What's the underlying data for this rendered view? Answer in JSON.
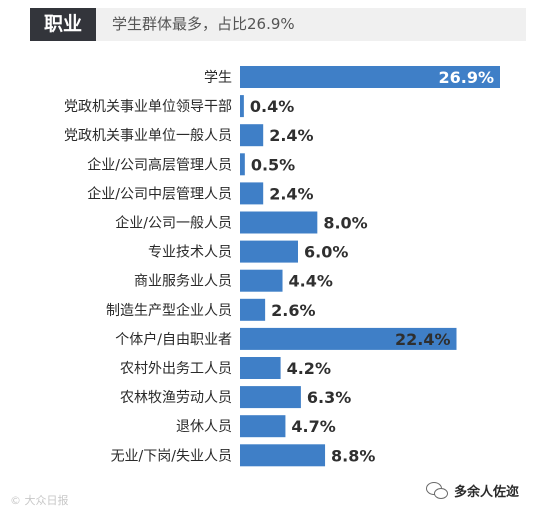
{
  "header": {
    "tag": "职业",
    "subtitle": "学生群体最多，占比26.9%"
  },
  "colors": {
    "bar": "#3f7fc7",
    "tag_bg": "#33353b",
    "header_bg": "#f0f0f0"
  },
  "chart_data": {
    "type": "bar",
    "orientation": "horizontal",
    "unit": "%",
    "categories": [
      "学生",
      "党政机关事业单位领导干部",
      "党政机关事业单位一般人员",
      "企业/公司高层管理人员",
      "企业/公司中层管理人员",
      "企业/公司一般人员",
      "专业技术人员",
      "商业服务业人员",
      "制造生产型企业人员",
      "个体户/自由职业者",
      "农村外出务工人员",
      "农林牧渔劳动人员",
      "退休人员",
      "无业/下岗/失业人员"
    ],
    "values": [
      26.9,
      0.4,
      2.4,
      0.5,
      2.4,
      8.0,
      6.0,
      4.4,
      2.6,
      22.4,
      4.2,
      6.3,
      4.7,
      8.8
    ],
    "value_labels": [
      "26.9%",
      "0.4%",
      "2.4%",
      "0.5%",
      "2.4%",
      "8.0%",
      "6.0%",
      "4.4%",
      "2.6%",
      "22.4%",
      "4.2%",
      "6.3%",
      "4.7%",
      "8.8%"
    ],
    "title": "",
    "xlabel": "",
    "ylabel": "",
    "grid": false,
    "legend": "none"
  },
  "watermarks": {
    "left": "© 大众日报",
    "right_icon": "wechat-icon",
    "right_text": "多余人佐迩"
  }
}
